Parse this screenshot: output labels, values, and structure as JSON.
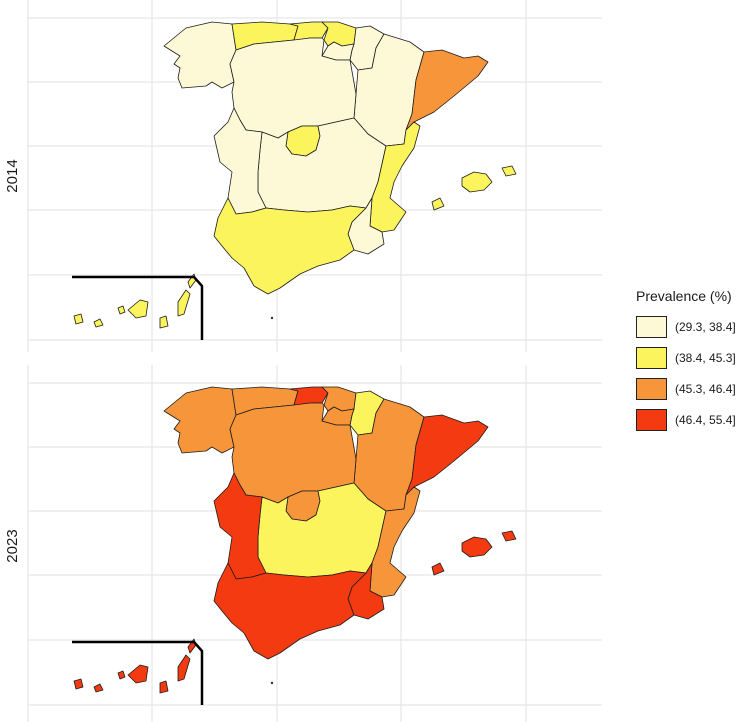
{
  "legend": {
    "title": "Prevalence (%)",
    "items": [
      {
        "label": "(29.3, 38.4]",
        "color": "#fdf9d6"
      },
      {
        "label": "(38.4, 45.3]",
        "color": "#fbf45c"
      },
      {
        "label": "(45.3, 46.4]",
        "color": "#f7953a"
      },
      {
        "label": "(46.4, 55.4]",
        "color": "#f33a10"
      }
    ]
  },
  "panels": [
    {
      "year": "2014",
      "regions": {
        "galicia": 0,
        "asturias": 1,
        "cantabria": 1,
        "pais_vasco": 1,
        "navarra": 0,
        "la_rioja": 0,
        "aragon": 0,
        "cataluna": 2,
        "castilla_leon": 0,
        "madrid": 1,
        "castilla_la_mancha": 0,
        "extremadura": 0,
        "valencia": 1,
        "murcia": 0,
        "andalucia": 1,
        "baleares": 1,
        "canarias": 1
      }
    },
    {
      "year": "2023",
      "regions": {
        "galicia": 2,
        "asturias": 2,
        "cantabria": 3,
        "pais_vasco": 2,
        "navarra": 1,
        "la_rioja": 2,
        "aragon": 2,
        "cataluna": 3,
        "castilla_leon": 2,
        "madrid": 2,
        "castilla_la_mancha": 1,
        "extremadura": 3,
        "valencia": 2,
        "murcia": 3,
        "andalucia": 3,
        "baleares": 3,
        "canarias": 3
      }
    }
  ]
}
